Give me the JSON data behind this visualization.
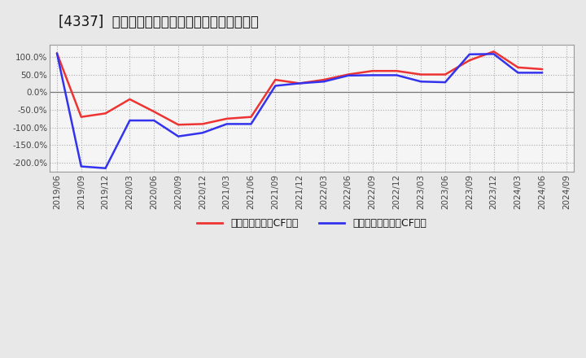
{
  "title": "[4337]  有利子負債キャッシュフロー比率の推移",
  "legend1": "有利子負債営業CF比率",
  "legend2": "有利子負債フリーCF比率",
  "x_labels": [
    "2019/06",
    "2019/09",
    "2019/12",
    "2020/03",
    "2020/06",
    "2020/09",
    "2020/12",
    "2021/03",
    "2021/06",
    "2021/09",
    "2021/12",
    "2022/03",
    "2022/06",
    "2022/09",
    "2022/12",
    "2023/03",
    "2023/06",
    "2023/09",
    "2023/12",
    "2024/03",
    "2024/06",
    "2024/09"
  ],
  "red_values": [
    110.0,
    -70.0,
    -60.0,
    -20.0,
    -55.0,
    -92.0,
    -90.0,
    -75.0,
    -70.0,
    35.0,
    25.0,
    35.0,
    50.0,
    60.0,
    60.0,
    50.0,
    50.0,
    90.0,
    115.0,
    70.0,
    65.0,
    null
  ],
  "blue_values": [
    110.0,
    -210.0,
    -215.0,
    -80.0,
    -80.0,
    -125.0,
    -115.0,
    -90.0,
    -90.0,
    18.0,
    25.0,
    30.0,
    47.0,
    48.0,
    48.0,
    30.0,
    28.0,
    107.0,
    108.0,
    55.0,
    55.0,
    null
  ],
  "ylim": [
    -225,
    135
  ],
  "yticks": [
    -200.0,
    -150.0,
    -100.0,
    -50.0,
    0.0,
    50.0,
    100.0
  ],
  "red_color": "#ee3333",
  "blue_color": "#3333ee",
  "bg_color": "#e8e8e8",
  "plot_bg": "#f5f5f5",
  "grid_color": "#aaaaaa",
  "title_fontsize": 12,
  "legend_fontsize": 9,
  "tick_fontsize": 7.5
}
